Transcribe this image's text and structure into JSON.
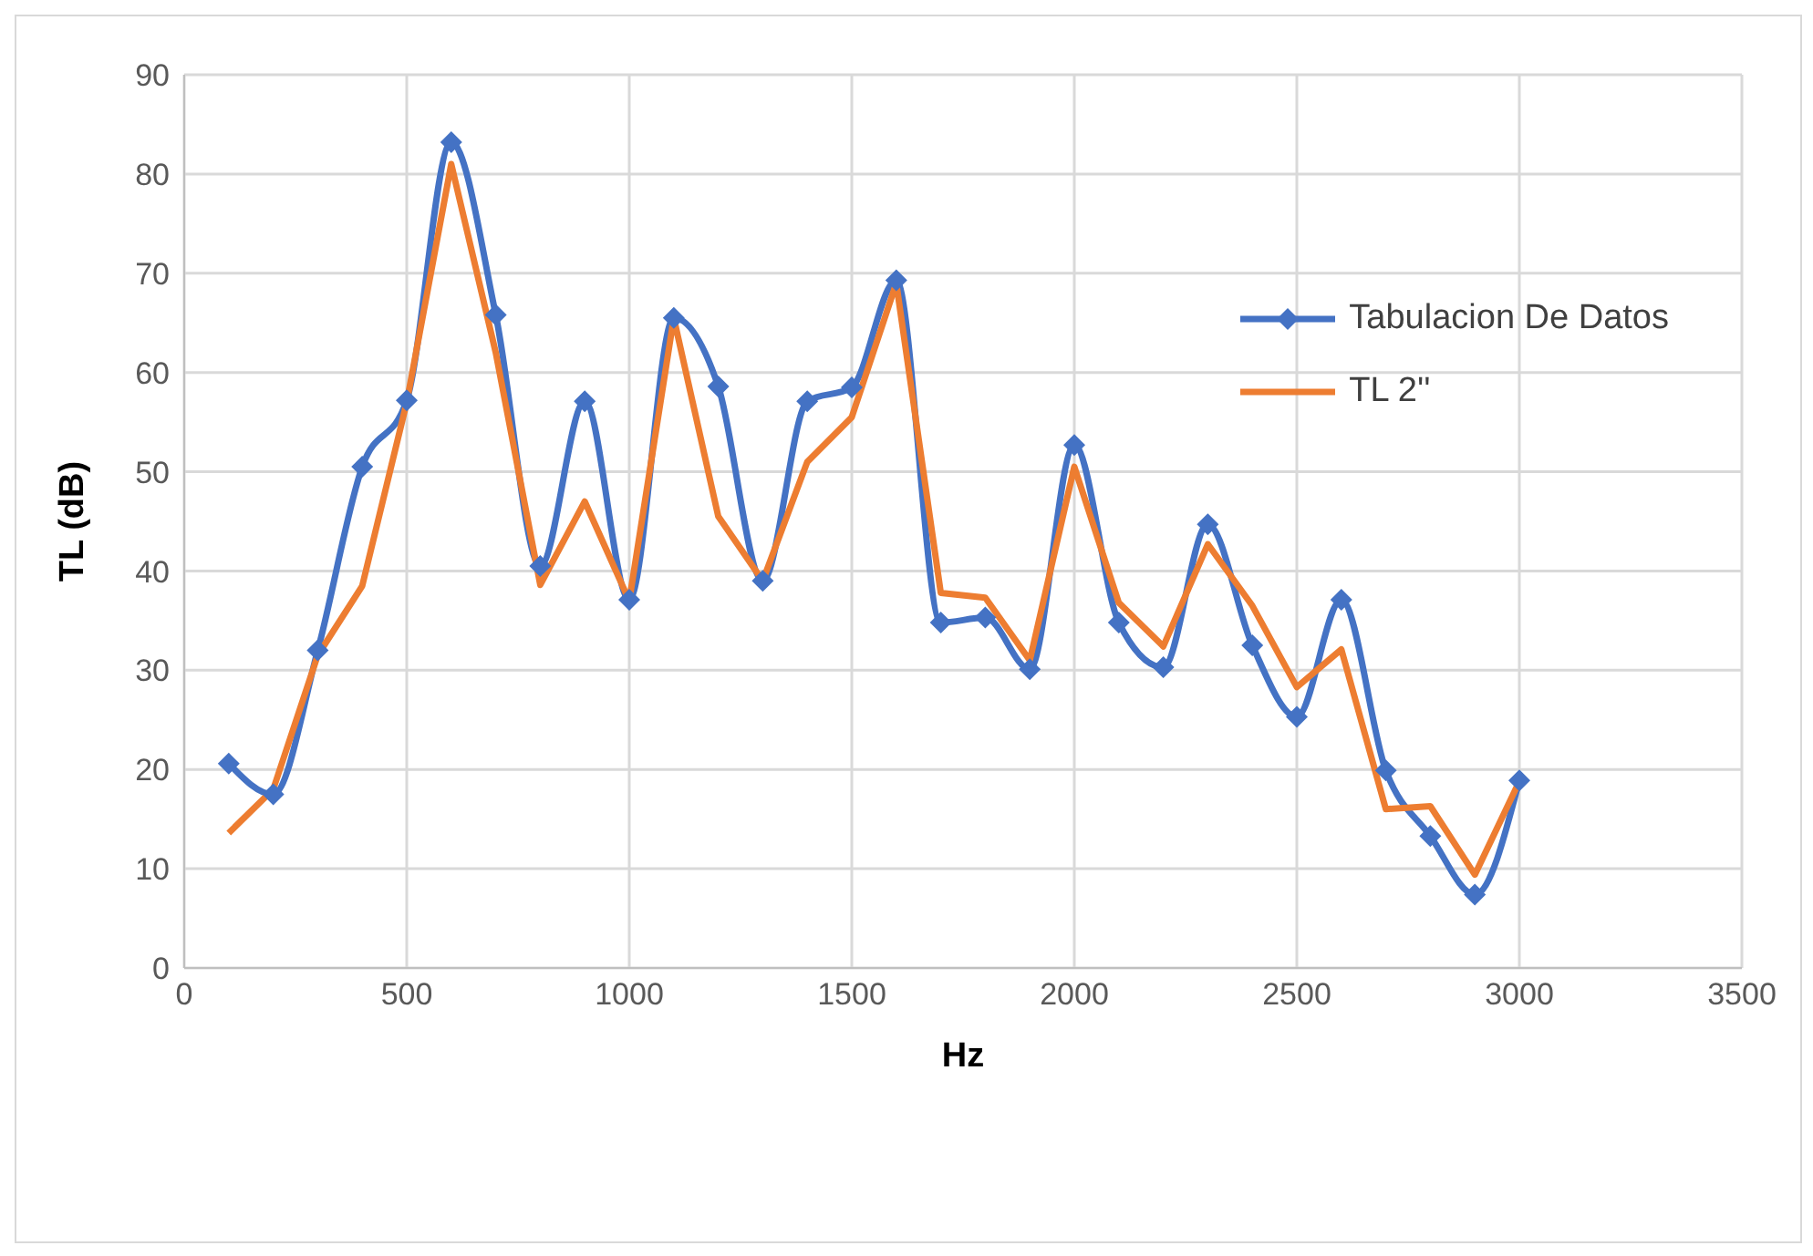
{
  "chart_data": {
    "type": "line",
    "xlabel": "Hz",
    "ylabel": "TL (dB)",
    "x": [
      100,
      200,
      300,
      400,
      500,
      600,
      700,
      800,
      900,
      1000,
      1100,
      1200,
      1300,
      1400,
      1500,
      1600,
      1700,
      1800,
      1900,
      2000,
      2100,
      2200,
      2300,
      2400,
      2500,
      2600,
      2700,
      2800,
      2900,
      3000
    ],
    "series": [
      {
        "name": "Tabulacion De Datos",
        "color": "#4472c4",
        "marker": "diamond",
        "values": [
          20.6,
          17.5,
          32,
          50.5,
          57.2,
          83.2,
          65.8,
          40.5,
          57.1,
          37.1,
          65.5,
          58.6,
          39,
          57.1,
          58.5,
          69.3,
          34.8,
          35.3,
          30.1,
          52.7,
          34.8,
          30.3,
          44.7,
          32.5,
          25.3,
          37.1,
          19.9,
          13.3,
          7.4,
          18.9
        ]
      },
      {
        "name": "TL 2''",
        "color": "#ed7d31",
        "marker": "none",
        "values": [
          13.6,
          18,
          31.5,
          38.5,
          57,
          81,
          62,
          38.6,
          47,
          37,
          65.5,
          45.5,
          39,
          51,
          55.5,
          69,
          37.8,
          37.3,
          31,
          50.5,
          36.8,
          32.4,
          42.7,
          36.5,
          28.3,
          32.1,
          16,
          16.3,
          9.4,
          18.8
        ]
      }
    ],
    "xlim": [
      0,
      3500
    ],
    "xticks": [
      0,
      500,
      1000,
      1500,
      2000,
      2500,
      3000,
      3500
    ],
    "ylim": [
      0,
      90
    ],
    "yticks": [
      0,
      10,
      20,
      30,
      40,
      50,
      60,
      70,
      80,
      90
    ],
    "grid": true,
    "legend": "right",
    "line_style": "solid"
  }
}
